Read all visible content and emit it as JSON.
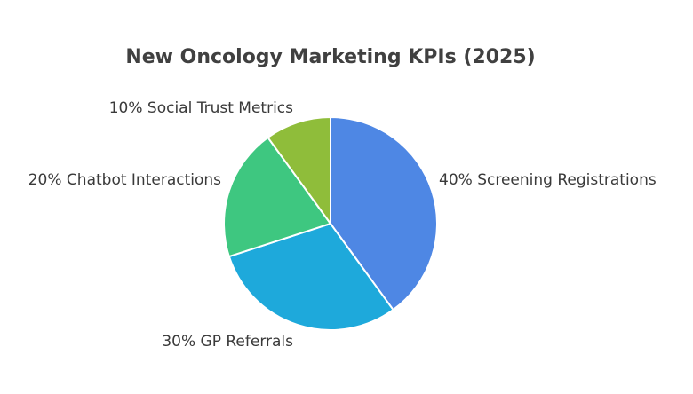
{
  "chart_data": {
    "type": "pie",
    "title": "New Oncology Marketing KPIs (2025)",
    "slices": [
      {
        "label": "40% Screening Registrations",
        "value": 40,
        "color": "#4e87e4"
      },
      {
        "label": "30% GP Referrals",
        "value": 30,
        "color": "#1ea9db"
      },
      {
        "label": "20% Chatbot Interactions",
        "value": 20,
        "color": "#3ec780"
      },
      {
        "label": "10% Social Trust Metrics",
        "value": 10,
        "color": "#8fbd3a"
      }
    ]
  }
}
